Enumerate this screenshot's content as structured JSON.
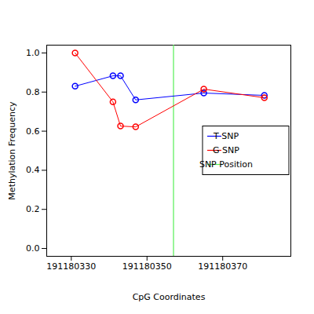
{
  "chart_data": {
    "type": "line",
    "x_label": "CpG Coordinates",
    "y_label": "Methylation Frequency",
    "xlim": [
      191180323.5,
      191180388
    ],
    "xticks": [
      191180330,
      191180350,
      191180370
    ],
    "ylim": [
      -0.04,
      1.04
    ],
    "yticks": [
      {
        "value": 0,
        "label": "0.0"
      },
      {
        "value": 0.2,
        "label": "0.2"
      },
      {
        "value": 0.4,
        "label": "0.4"
      },
      {
        "value": 0.6,
        "label": "0.6"
      },
      {
        "value": 0.8,
        "label": "0.8"
      },
      {
        "value": 1,
        "label": "1.0"
      }
    ],
    "legend": "right",
    "marker": "circle",
    "line_style": "solid",
    "series": [
      {
        "name": "T SNP",
        "color": "#0000ff",
        "x": [
          191180331,
          191180341,
          191180343,
          191180347,
          191180365,
          191180381
        ],
        "values": [
          0.83,
          0.883,
          0.883,
          0.76,
          0.795,
          0.783
        ]
      },
      {
        "name": "G SNP",
        "color": "#ff0000",
        "x": [
          191180331,
          191180341,
          191180343,
          191180347,
          191180365,
          191180381
        ],
        "values": [
          1.0,
          0.75,
          0.626,
          0.622,
          0.815,
          0.771
        ]
      }
    ],
    "snp": {
      "name": "SNP Position",
      "color": "#55ee55",
      "x": 191180357
    }
  }
}
